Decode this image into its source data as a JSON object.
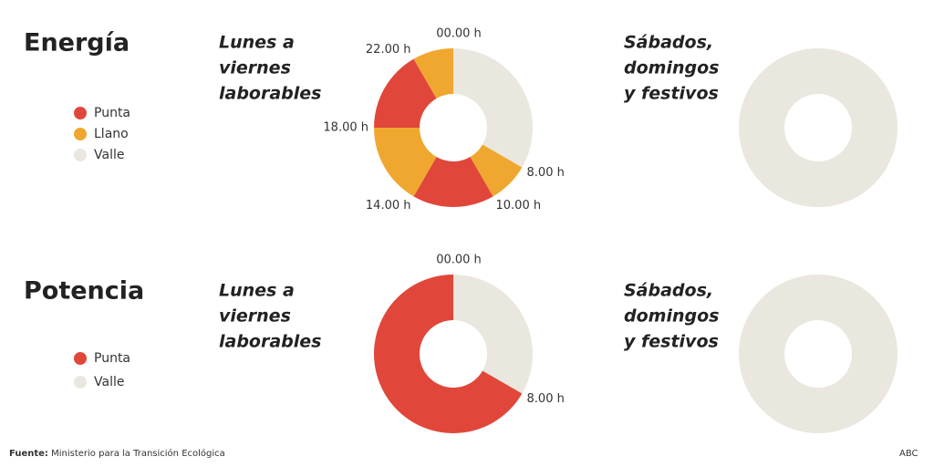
{
  "sections": [
    {
      "title": "Energía",
      "legend": [
        {
          "name": "Punta",
          "color": "#e0473a"
        },
        {
          "name": "Llano",
          "color": "#f0a72f"
        },
        {
          "name": "Valle",
          "color": "#e9e7de"
        }
      ]
    },
    {
      "title": "Potencia",
      "legend": [
        {
          "name": "Punta",
          "color": "#e0473a"
        },
        {
          "name": "Valle",
          "color": "#e9e7de"
        }
      ]
    }
  ],
  "chart_data": [
    {
      "type": "pie",
      "title": [
        "Lunes a",
        "viernes",
        "laborables"
      ],
      "values": [
        8,
        2,
        4,
        4,
        4,
        2
      ],
      "colors": [
        "#e9e7de",
        "#f0a72f",
        "#e0473a",
        "#f0a72f",
        "#e0473a",
        "#f0a72f"
      ],
      "start_labels": [
        "00.00 h",
        "8.00 h",
        "10.00 h",
        "14.00 h",
        "18.00 h",
        "22.00 h"
      ]
    },
    {
      "type": "pie",
      "title": [
        "Sábados,",
        "domingos",
        "y festivos"
      ],
      "values": [
        24
      ],
      "colors": [
        "#e9e7de"
      ]
    },
    {
      "type": "pie",
      "title": [
        "Lunes a",
        "viernes",
        "laborables"
      ],
      "values": [
        8,
        16
      ],
      "colors": [
        "#e9e7de",
        "#e0473a"
      ],
      "start_labels": [
        "00.00 h",
        "8.00 h"
      ]
    },
    {
      "type": "pie",
      "title": [
        "Sábados,",
        "domingos",
        "y festivos"
      ],
      "values": [
        24
      ],
      "colors": [
        "#e9e7de"
      ]
    }
  ],
  "source": {
    "label": "Fuente:",
    "text": "Ministerio para la Transición Ecológica"
  },
  "credit": "ABC"
}
